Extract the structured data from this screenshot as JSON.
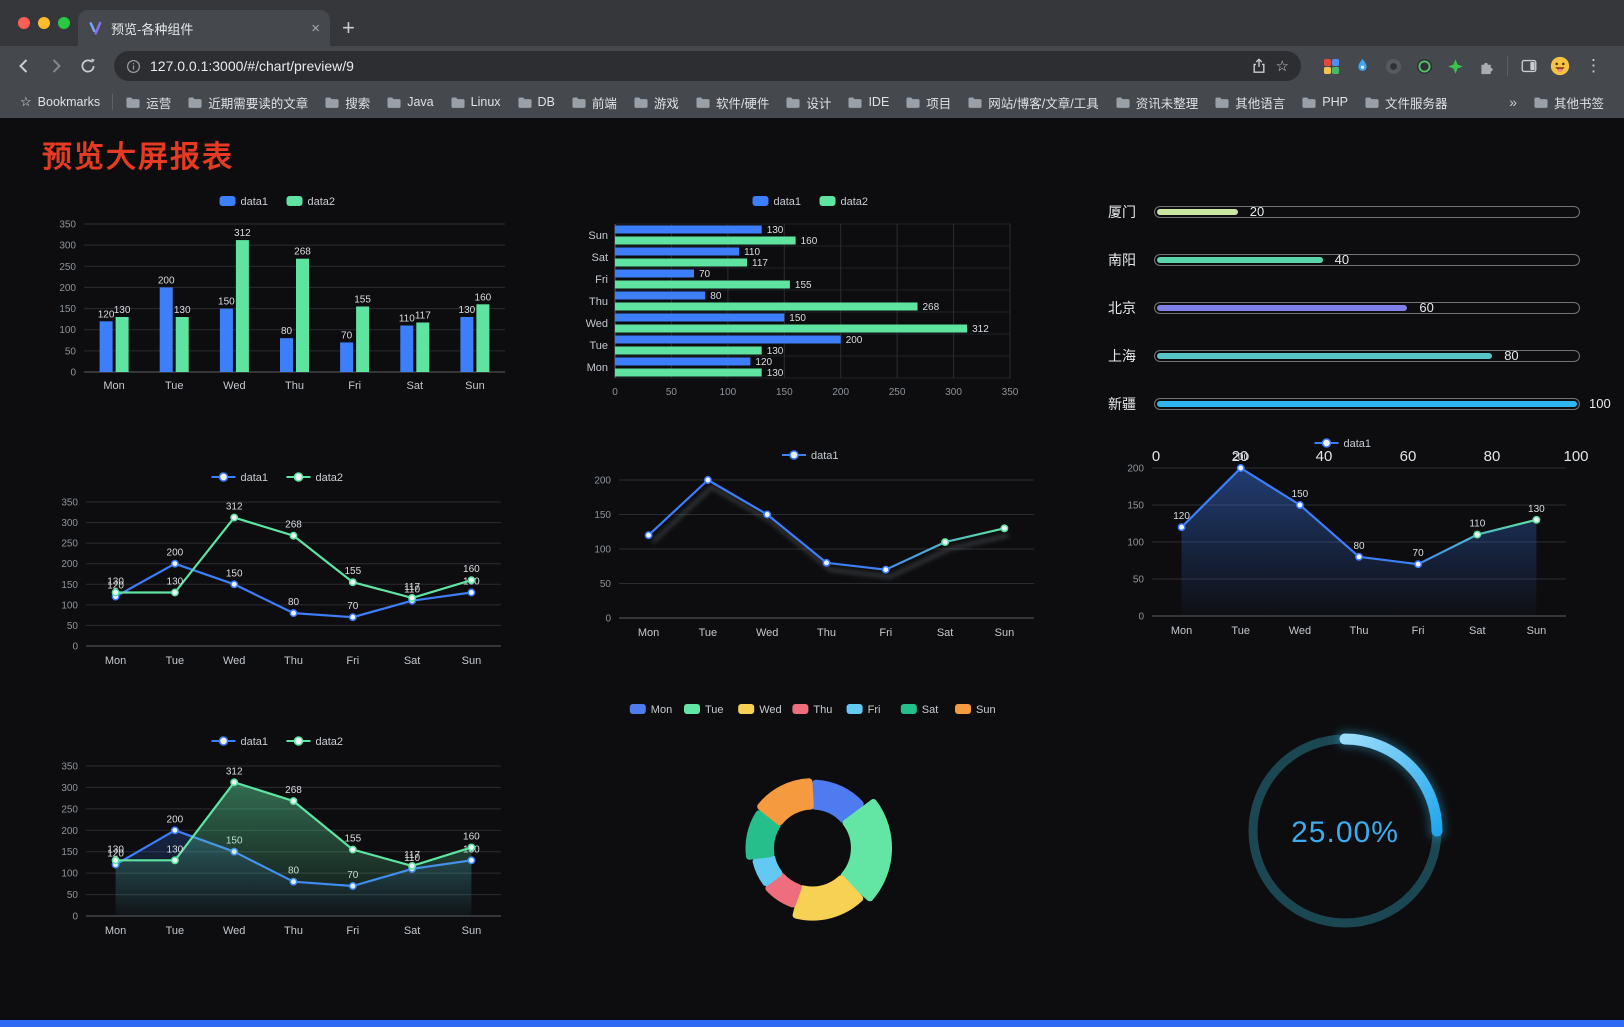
{
  "browser": {
    "tab": {
      "title": "预览-各种组件",
      "close_glyph": "×",
      "new_tab_glyph": "+"
    },
    "nav": {
      "url": "127.0.0.1:3000/#/chart/preview/9"
    },
    "bookmarks_bar": {
      "bookmarks_label": "Bookmarks",
      "folders": [
        "运营",
        "近期需要读的文章",
        "搜索",
        "Java",
        "Linux",
        "DB",
        "前端",
        "游戏",
        "软件/硬件",
        "设计",
        "IDE",
        "项目",
        "网站/博客/文章/工具",
        "资讯未整理",
        "其他语言",
        "PHP",
        "文件服务器"
      ],
      "overflow_glyph": "»",
      "other_bookmarks": "其他书签"
    }
  },
  "page": {
    "title": "预览大屏报表",
    "accent_bar_color": "#2E6BF2"
  },
  "chart_data": [
    {
      "id": "bar-vertical",
      "type": "bar",
      "categories": [
        "Mon",
        "Tue",
        "Wed",
        "Thu",
        "Fri",
        "Sat",
        "Sun"
      ],
      "series": [
        {
          "name": "data1",
          "color": "#3D7EFB",
          "values": [
            120,
            200,
            150,
            80,
            70,
            110,
            130
          ]
        },
        {
          "name": "data2",
          "color": "#5FE3A1",
          "values": [
            130,
            130,
            312,
            268,
            155,
            117,
            160
          ]
        }
      ],
      "ylim": [
        0,
        350
      ],
      "yticks": [
        0,
        50,
        100,
        150,
        200,
        250,
        300,
        350
      ],
      "legend": [
        "data1",
        "data2"
      ],
      "labels": true,
      "grid": true
    },
    {
      "id": "bar-horizontal",
      "type": "hbar",
      "categories": [
        "Mon",
        "Tue",
        "Wed",
        "Thu",
        "Fri",
        "Sat",
        "Sun"
      ],
      "series": [
        {
          "name": "data1",
          "color": "#3D7EFB",
          "values": [
            120,
            200,
            150,
            80,
            70,
            110,
            130
          ]
        },
        {
          "name": "data2",
          "color": "#5FE3A1",
          "values": [
            130,
            130,
            312,
            268,
            155,
            117,
            160
          ]
        }
      ],
      "xlim": [
        0,
        350
      ],
      "xticks": [
        0,
        50,
        100,
        150,
        200,
        250,
        300,
        350
      ],
      "legend": [
        "data1",
        "data2"
      ],
      "labels": true,
      "grid": true
    },
    {
      "id": "progress-bars",
      "type": "progress",
      "max": 100,
      "items": [
        {
          "label": "厦门",
          "value": 20,
          "color": "#C9E7A1"
        },
        {
          "label": "南阳",
          "value": 40,
          "color": "#5BD6AC"
        },
        {
          "label": "北京",
          "value": 60,
          "color": "#7F80E8"
        },
        {
          "label": "上海",
          "value": 80,
          "color": "#58C4C5"
        },
        {
          "label": "新疆",
          "value": 100,
          "color": "#2FB6F0"
        }
      ],
      "ticks": [
        0,
        20,
        40,
        60,
        80,
        100
      ]
    },
    {
      "id": "line-dual",
      "type": "line",
      "categories": [
        "Mon",
        "Tue",
        "Wed",
        "Thu",
        "Fri",
        "Sat",
        "Sun"
      ],
      "series": [
        {
          "name": "data1",
          "color": "#3D7EFB",
          "values": [
            120,
            200,
            150,
            80,
            70,
            110,
            130
          ]
        },
        {
          "name": "data2",
          "color": "#5FE3A1",
          "values": [
            130,
            130,
            312,
            268,
            155,
            117,
            160
          ]
        }
      ],
      "ylim": [
        0,
        350
      ],
      "yticks": [
        0,
        50,
        100,
        150,
        200,
        250,
        300,
        350
      ],
      "legend": [
        "data1",
        "data2"
      ],
      "labels": true,
      "grid": true
    },
    {
      "id": "line-single",
      "type": "line",
      "categories": [
        "Mon",
        "Tue",
        "Wed",
        "Thu",
        "Fri",
        "Sat",
        "Sun"
      ],
      "series": [
        {
          "name": "data1",
          "color": "#3D7EFB",
          "gradient_to": "#5FE3A1",
          "values": [
            120,
            200,
            150,
            80,
            70,
            110,
            130
          ]
        }
      ],
      "ylim": [
        0,
        200
      ],
      "yticks": [
        0,
        50,
        100,
        150,
        200
      ],
      "legend": [
        "data1"
      ],
      "labels": false,
      "shadow": true,
      "grid": true
    },
    {
      "id": "line-area-single",
      "type": "line",
      "categories": [
        "Mon",
        "Tue",
        "Wed",
        "Thu",
        "Fri",
        "Sat",
        "Sun"
      ],
      "series": [
        {
          "name": "data1",
          "color": "#3D7EFB",
          "gradient_to": "#5FE3A1",
          "area_opacity": 0.42,
          "values": [
            120,
            200,
            150,
            80,
            70,
            110,
            130
          ]
        }
      ],
      "ylim": [
        0,
        200
      ],
      "yticks": [
        0,
        50,
        100,
        150,
        200
      ],
      "legend": [
        "data1"
      ],
      "labels": true,
      "grid": true
    },
    {
      "id": "line-area-dual",
      "type": "line",
      "categories": [
        "Mon",
        "Tue",
        "Wed",
        "Thu",
        "Fri",
        "Sat",
        "Sun"
      ],
      "series": [
        {
          "name": "data1",
          "color": "#3D7EFB",
          "area_opacity": 0.22,
          "values": [
            120,
            200,
            150,
            80,
            70,
            110,
            130
          ]
        },
        {
          "name": "data2",
          "color": "#5FE3A1",
          "area_opacity": 0.45,
          "values": [
            130,
            130,
            312,
            268,
            155,
            117,
            160
          ]
        }
      ],
      "ylim": [
        0,
        350
      ],
      "yticks": [
        0,
        50,
        100,
        150,
        200,
        250,
        300,
        350
      ],
      "legend": [
        "data1",
        "data2"
      ],
      "labels": true,
      "grid": true
    },
    {
      "id": "donut",
      "type": "pie",
      "items": [
        {
          "label": "Mon",
          "value": 120,
          "color": "#4E7CF0"
        },
        {
          "label": "Tue",
          "value": 200,
          "color": "#63E6A4"
        },
        {
          "label": "Wed",
          "value": 150,
          "color": "#F7D154"
        },
        {
          "label": "Thu",
          "value": 80,
          "color": "#EE6E7E"
        },
        {
          "label": "Fri",
          "value": 70,
          "color": "#63C8F2"
        },
        {
          "label": "Sat",
          "value": 110,
          "color": "#26BF8C"
        },
        {
          "label": "Sun",
          "value": 130,
          "color": "#F59A3E"
        }
      ],
      "legend_position": "top"
    },
    {
      "id": "gauge",
      "type": "gauge",
      "value": 25,
      "label": "25.00%",
      "color": "#2FB3F0",
      "track_color": "#1B4752",
      "text_color": "#3DABEE"
    }
  ]
}
